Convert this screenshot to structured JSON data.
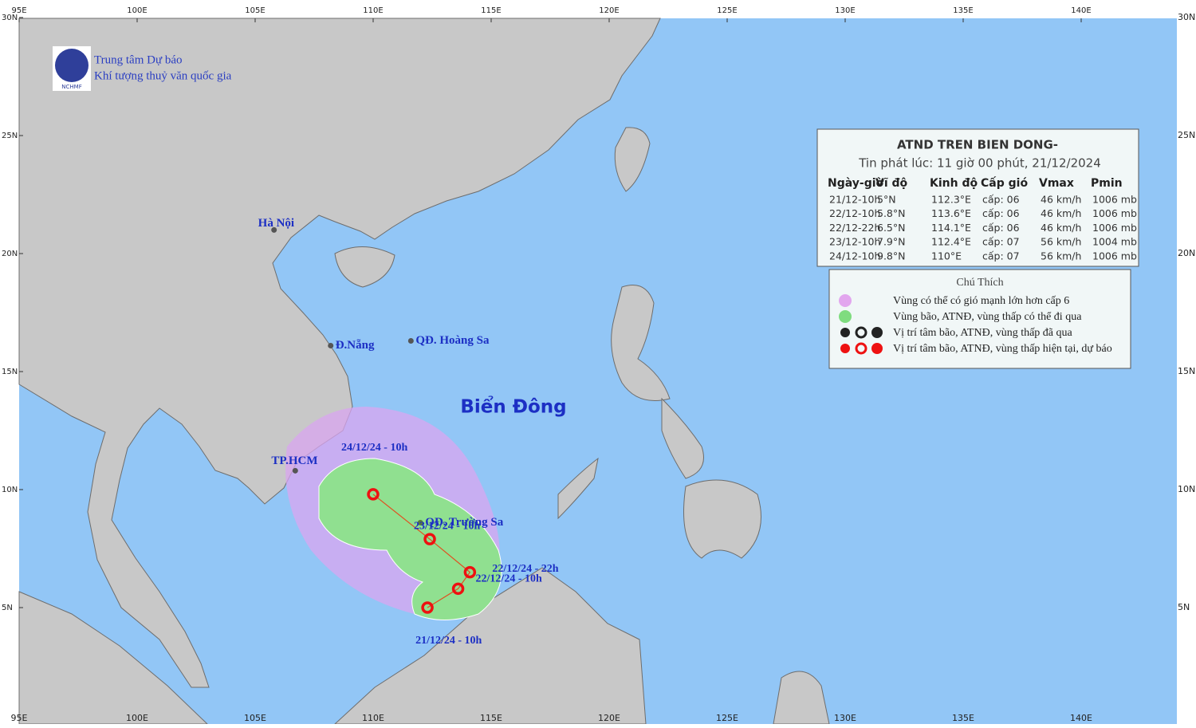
{
  "header": {
    "org_line1": "Trung tâm Dự báo",
    "org_line2": "Khí tượng thuỷ văn quốc gia",
    "logo_text": "NCHMF"
  },
  "lon_ticks": [
    {
      "value": 95,
      "label": "95E"
    },
    {
      "value": 100,
      "label": "100E"
    },
    {
      "value": 105,
      "label": "105E"
    },
    {
      "value": 110,
      "label": "110E"
    },
    {
      "value": 115,
      "label": "115E"
    },
    {
      "value": 120,
      "label": "120E"
    },
    {
      "value": 125,
      "label": "125E"
    },
    {
      "value": 130,
      "label": "130E"
    },
    {
      "value": 135,
      "label": "135E"
    },
    {
      "value": 140,
      "label": "140E"
    }
  ],
  "lat_ticks": [
    {
      "value": 5,
      "label": "5N"
    },
    {
      "value": 10,
      "label": "10N"
    },
    {
      "value": 15,
      "label": "15N"
    },
    {
      "value": 20,
      "label": "20N"
    },
    {
      "value": 25,
      "label": "25N"
    },
    {
      "value": 30,
      "label": "30N"
    }
  ],
  "places": [
    {
      "label": "Hà Nội",
      "lat": 21.0,
      "lon": 105.8
    },
    {
      "label": "Đ.Nẵng",
      "lat": 16.1,
      "lon": 108.2
    },
    {
      "label": "QĐ. Hoàng Sa",
      "lat": 16.3,
      "lon": 111.6
    },
    {
      "label": "TP.HCM",
      "lat": 10.8,
      "lon": 106.7
    },
    {
      "label": "QĐ. Trường Sa",
      "lat": 8.6,
      "lon": 112.0
    }
  ],
  "sea_label": "Biển Đông",
  "track": [
    {
      "label": "21/12/24 - 10h",
      "lat": 5.0,
      "lon": 112.3
    },
    {
      "label": "22/12/24 - 10h",
      "lat": 5.8,
      "lon": 113.6
    },
    {
      "label": "22/12/24 - 22h",
      "lat": 6.5,
      "lon": 114.1
    },
    {
      "label": "23/12/24 - 10h",
      "lat": 7.9,
      "lon": 112.4
    },
    {
      "label": "24/12/24 - 10h",
      "lat": 9.8,
      "lon": 110.0
    }
  ],
  "table": {
    "title": "ATND TREN BIEN DONG-",
    "subtitle": "Tin phát lúc: 11 giờ 00 phút, 21/12/2024",
    "columns": [
      "Ngày-giờ",
      "Vĩ độ",
      "Kinh độ",
      "Cấp gió",
      "Vmax",
      "Pmin"
    ],
    "rows": [
      [
        "21/12-10h",
        "5°N",
        "112.3°E",
        "cấp: 06",
        "46 km/h",
        "1006 mb"
      ],
      [
        "22/12-10h",
        "5.8°N",
        "113.6°E",
        "cấp: 06",
        "46 km/h",
        "1006 mb"
      ],
      [
        "22/12-22h",
        "6.5°N",
        "114.1°E",
        "cấp: 06",
        "46 km/h",
        "1006 mb"
      ],
      [
        "23/12-10h",
        "7.9°N",
        "112.4°E",
        "cấp: 07",
        "56 km/h",
        "1004 mb"
      ],
      [
        "24/12-10h",
        "9.8°N",
        "110°E",
        "cấp: 07",
        "56 km/h",
        "1006 mb"
      ]
    ]
  },
  "legend": {
    "title": "Chú Thích",
    "items": [
      "Vùng có thể có gió mạnh lớn hơn cấp 6",
      "Vùng bão, ATNĐ, vùng thấp có thể đi qua",
      "Vị trí tâm bão, ATNĐ, vùng thấp đã qua",
      "Vị trí tâm bão, ATNĐ, vùng thấp hiện tại, dự báo"
    ]
  }
}
